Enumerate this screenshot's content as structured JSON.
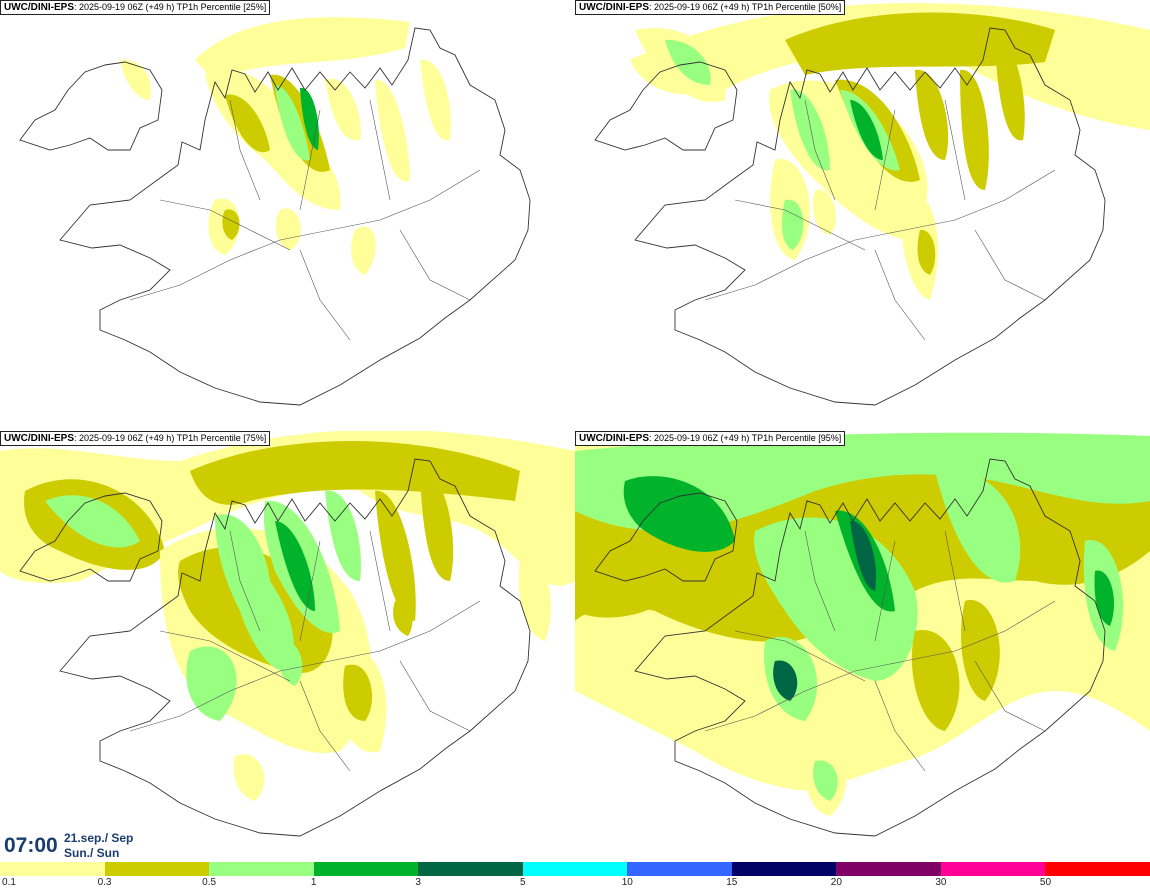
{
  "panels": [
    {
      "source": "UWC/DINI-EPS",
      "run_info": ": 2025-09-19 06Z (+49 h)",
      "product": "TP1h Percentile [25%]",
      "level": 0
    },
    {
      "source": "UWC/DINI-EPS",
      "run_info": ": 2025-09-19 06Z (+49 h)",
      "product": "TP1h Percentile [50%]",
      "level": 1
    },
    {
      "source": "UWC/DINI-EPS",
      "run_info": ": 2025-09-19 06Z (+49 h)",
      "product": "TP1h Percentile [75%]",
      "level": 2
    },
    {
      "source": "UWC/DINI-EPS",
      "run_info": ": 2025-09-19 06Z (+49 h)",
      "product": "TP1h Percentile [95%]",
      "level": 3
    }
  ],
  "valid_time": {
    "time": "07:00",
    "date_line1": "21.sep./ Sep",
    "date_line2": "Sun./ Sun"
  },
  "legend": {
    "colors": [
      "#ffff99",
      "#cccc00",
      "#99ff80",
      "#00b32a",
      "#006644",
      "#00ffff",
      "#3366ff",
      "#000066",
      "#800066",
      "#ff0099",
      "#ff0000"
    ],
    "labels": [
      "0.1",
      "0.3",
      "0.5",
      "1",
      "3",
      "5",
      "10",
      "15",
      "20",
      "30",
      "50"
    ]
  }
}
